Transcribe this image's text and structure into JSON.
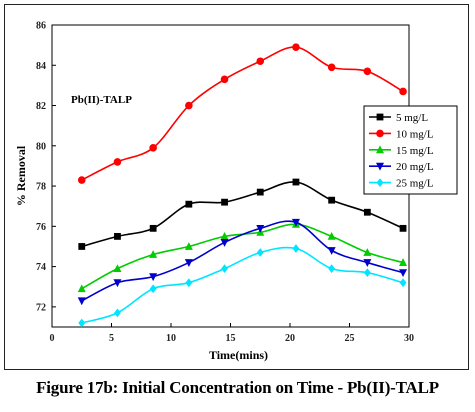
{
  "caption": "Figure 17b: Initial Concentration on Time - Pb(II)-TALP",
  "chart_data": {
    "type": "line",
    "title": "",
    "annotation": "Pb(II)-TALP",
    "xlabel": "Time(mins)",
    "ylabel": "% Removal",
    "xlim": [
      0,
      30
    ],
    "ylim": [
      71,
      86
    ],
    "xticks": [
      0,
      5,
      10,
      15,
      20,
      25,
      30
    ],
    "yticks": [
      72,
      74,
      76,
      78,
      80,
      82,
      84,
      86
    ],
    "grid": false,
    "legend_position": "right",
    "x": [
      2.5,
      5.5,
      8.5,
      11.5,
      14.5,
      17.5,
      20.5,
      23.5,
      26.5,
      29.5
    ],
    "series": [
      {
        "name": "5 mg/L",
        "color": "#000000",
        "marker": "square",
        "values": [
          75.0,
          75.5,
          75.9,
          77.1,
          77.2,
          77.7,
          78.2,
          77.3,
          76.7,
          75.9
        ]
      },
      {
        "name": "10 mg/L",
        "color": "#ff0000",
        "marker": "circle",
        "values": [
          78.3,
          79.2,
          79.9,
          82.0,
          83.3,
          84.2,
          84.9,
          83.9,
          83.7,
          82.7
        ]
      },
      {
        "name": "15 mg/L",
        "color": "#00cc00",
        "marker": "triangle-up",
        "values": [
          72.9,
          73.9,
          74.6,
          75.0,
          75.5,
          75.7,
          76.1,
          75.5,
          74.7,
          74.2
        ]
      },
      {
        "name": "20 mg/L",
        "color": "#0000cc",
        "marker": "triangle-down",
        "values": [
          72.3,
          73.2,
          73.5,
          74.2,
          75.2,
          75.9,
          76.2,
          74.8,
          74.2,
          73.7
        ]
      },
      {
        "name": "25 mg/L",
        "color": "#00e5ff",
        "marker": "diamond",
        "values": [
          71.2,
          71.7,
          72.9,
          73.2,
          73.9,
          74.7,
          74.9,
          73.9,
          73.7,
          73.2
        ]
      }
    ]
  }
}
